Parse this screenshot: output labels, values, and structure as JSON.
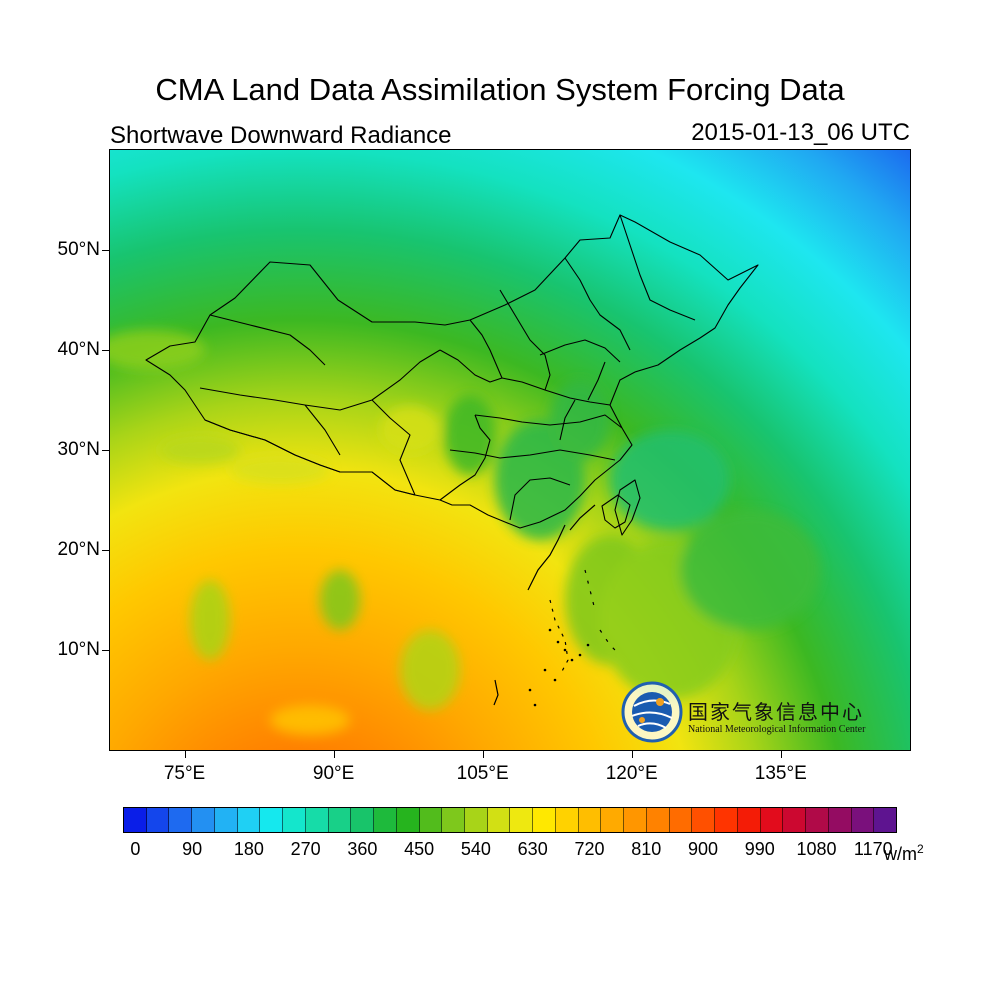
{
  "title": "CMA Land Data Assimilation System Forcing Data",
  "subtitle_left": "Shortwave Downward Radiance",
  "subtitle_right": "2015-01-13_06 UTC",
  "map": {
    "variable": "Shortwave Downward Radiance",
    "region": "China and surrounding areas",
    "lon_range": [
      67.5,
      148
    ],
    "lat_range": [
      0,
      60
    ],
    "lat_ticks": [
      {
        "value": 50,
        "label": "50°N"
      },
      {
        "value": 40,
        "label": "40°N"
      },
      {
        "value": 30,
        "label": "30°N"
      },
      {
        "value": 20,
        "label": "20°N"
      },
      {
        "value": 10,
        "label": "10°N"
      }
    ],
    "lon_ticks": [
      {
        "value": 75,
        "label": "75°E"
      },
      {
        "value": 90,
        "label": "90°E"
      },
      {
        "value": 105,
        "label": "105°E"
      },
      {
        "value": 120,
        "label": "120°E"
      },
      {
        "value": 135,
        "label": "135°E"
      }
    ]
  },
  "colorbar": {
    "unit": "w/m",
    "unit_superscript": "2",
    "labels": [
      "0",
      "90",
      "180",
      "270",
      "360",
      "450",
      "540",
      "630",
      "720",
      "810",
      "900",
      "990",
      "1080",
      "1170"
    ],
    "colors": [
      "#0a1ee8",
      "#1446ec",
      "#1e6af0",
      "#2390f2",
      "#22b2f4",
      "#1fd0f4",
      "#15e8ee",
      "#14e6cc",
      "#16dca8",
      "#18d088",
      "#18c46a",
      "#1eba3c",
      "#26b41e",
      "#52bc1c",
      "#7ec81c",
      "#a8d418",
      "#d2e014",
      "#eee810",
      "#ffe800",
      "#ffd200",
      "#ffbe00",
      "#ffaa00",
      "#ff9600",
      "#ff8200",
      "#ff6c00",
      "#ff5000",
      "#ff3400",
      "#f41c06",
      "#e20c1c",
      "#cc0830",
      "#b00a48",
      "#940c62",
      "#7a107c",
      "#5e1490"
    ]
  },
  "logo": {
    "cn": "国家气象信息中心",
    "en": "National Meteorological Information Center"
  }
}
